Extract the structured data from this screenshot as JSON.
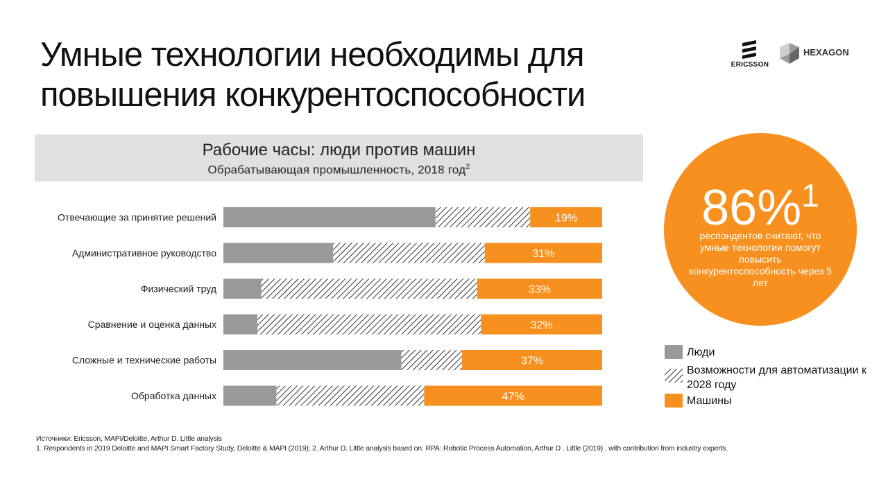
{
  "title": "Умные технологии необходимы для повышения конкурентоспособности",
  "logos": {
    "ericsson": "ERICSSON",
    "hexagon": "HEXAGON",
    "ericsson_icon": "ericsson-logo-icon",
    "hexagon_icon": "hexagon-logo-icon"
  },
  "chart_data": {
    "type": "bar",
    "orientation": "horizontal",
    "stacked": true,
    "title": "Рабочие часы: люди против машин",
    "subtitle": "Обрабатывающая промышленность,  2018 год",
    "subtitle_footnote": "2",
    "categories": [
      "Отвечающие  за принятие решений",
      "Административное  руководство",
      "Физический  труд",
      "Сравнение и оценка данных",
      "Сложные и технические  работы",
      "Обработка данных"
    ],
    "series": [
      {
        "name": "Люди",
        "values": [
          56,
          29,
          10,
          9,
          47,
          14
        ],
        "color": "#999999",
        "pattern": "solid"
      },
      {
        "name": "Возможности для автоматизации к 2028 году",
        "values": [
          25,
          40,
          57,
          59,
          16,
          39
        ],
        "color": "#333333",
        "pattern": "hatched"
      },
      {
        "name": "Машины",
        "values": [
          19,
          31,
          33,
          32,
          37,
          47
        ],
        "color": "#f7901e",
        "pattern": "solid"
      }
    ],
    "data_labels": [
      "19%",
      "31%",
      "33%",
      "32%",
      "37%",
      "47%"
    ],
    "xlim": [
      0,
      100
    ],
    "grid": false,
    "legend_position": "bottom-right"
  },
  "callout": {
    "value": "86%",
    "footnote": "1",
    "text": "респондентов считают, что умные технологии помогут повысить конкурентоспособность через 5 лет",
    "color": "#f7901e"
  },
  "legend": [
    {
      "label": "Люди",
      "color": "#999999",
      "pattern": "solid"
    },
    {
      "label": "Возможности для автоматизации к 2028 году",
      "color": "#333333",
      "pattern": "hatched"
    },
    {
      "label": "Машины",
      "color": "#f7901e",
      "pattern": "solid"
    }
  ],
  "sources": {
    "line1": "Источники: Ericsson, MAPI/Deloitte, Arthur D. Little analysis",
    "line2": "1. Respondents in 2019 Deloitte and MAPI Smart Factory Study, Deloitte & MAPI (2019); 2. Arthur D. Little analysis based on: RPA: Robotic Process Automation, Arthur D . Little (2019) , with contribution from industry experts."
  }
}
